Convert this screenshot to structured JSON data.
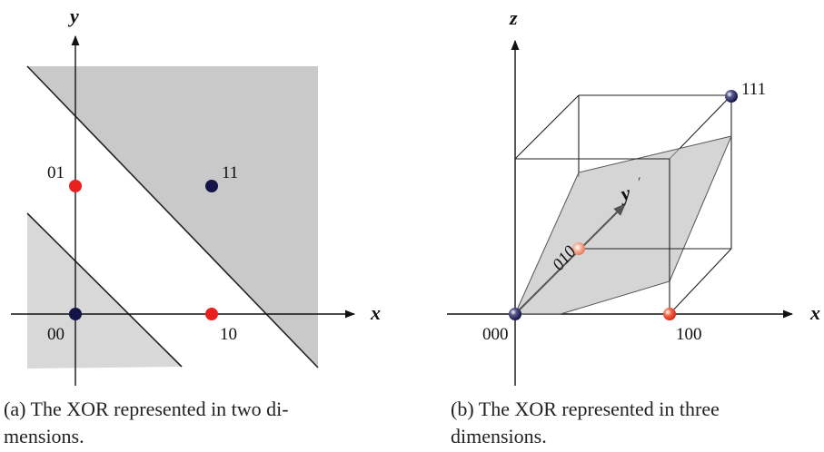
{
  "panel_a": {
    "y_axis": "y",
    "x_axis": "x",
    "points": [
      "00",
      "01",
      "10",
      "11"
    ],
    "caption_tag": "(a)",
    "caption_line1": "The XOR represented in two di-",
    "caption_line2": "mensions."
  },
  "panel_b": {
    "z_axis": "z",
    "x_axis": "x",
    "y_axis": "y",
    "points": [
      "000",
      "100",
      "111",
      "010"
    ],
    "caption_tag": "(b)",
    "caption_line1": "The XOR represented in three",
    "caption_line2": "dimensions."
  },
  "colors": {
    "class_0": "#1a1a4e",
    "class_1": "#e8201f",
    "region": "#c8c8c8"
  }
}
